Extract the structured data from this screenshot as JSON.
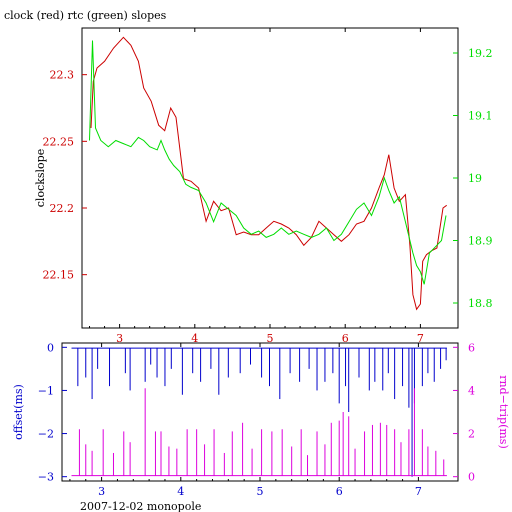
{
  "chart_data": [
    {
      "type": "line",
      "title": "clock (red) rtc (green) slopes",
      "xlabel": "",
      "x_ticks": [
        "3",
        "4",
        "5",
        "6",
        "7"
      ],
      "xlim": [
        2.5,
        7.5
      ],
      "y_left": {
        "label": "clockslope",
        "ticks": [
          "22.3",
          "22.25",
          "22.2",
          "22.15"
        ],
        "ylim": [
          22.11,
          22.335
        ],
        "color": "#cc0000"
      },
      "y_right": {
        "label": "",
        "ticks": [
          "19.2",
          "19.1",
          "19",
          "18.9",
          "18.8"
        ],
        "ylim": [
          18.76,
          19.24
        ],
        "color": "#00dd00"
      },
      "series": [
        {
          "color": "#cc0000",
          "axis": "left",
          "x": [
            2.62,
            2.65,
            2.7,
            2.8,
            2.92,
            3.05,
            3.15,
            3.25,
            3.32,
            3.42,
            3.52,
            3.6,
            3.68,
            3.75,
            3.85,
            3.95,
            4.05,
            4.15,
            4.25,
            4.35,
            4.45,
            4.55,
            4.65,
            4.75,
            4.85,
            4.95,
            5.05,
            5.15,
            5.25,
            5.35,
            5.45,
            5.55,
            5.65,
            5.75,
            5.85,
            5.95,
            6.05,
            6.15,
            6.25,
            6.35,
            6.45,
            6.52,
            6.58,
            6.65,
            6.72,
            6.8,
            6.86,
            6.9,
            6.95,
            7.0,
            7.03,
            7.08,
            7.15,
            7.22,
            7.3,
            7.35
          ],
          "y": [
            22.26,
            22.295,
            22.305,
            22.31,
            22.32,
            22.328,
            22.322,
            22.31,
            22.29,
            22.28,
            22.262,
            22.258,
            22.275,
            22.268,
            22.222,
            22.22,
            22.215,
            22.19,
            22.205,
            22.198,
            22.2,
            22.18,
            22.182,
            22.18,
            22.18,
            22.185,
            22.19,
            22.188,
            22.185,
            22.18,
            22.172,
            22.178,
            22.19,
            22.185,
            22.18,
            22.175,
            22.18,
            22.188,
            22.19,
            22.2,
            22.215,
            22.225,
            22.24,
            22.215,
            22.205,
            22.21,
            22.172,
            22.135,
            22.124,
            22.128,
            22.16,
            22.165,
            22.168,
            22.17,
            22.2,
            22.202
          ]
        },
        {
          "color": "#00dd00",
          "axis": "right",
          "x": [
            2.6,
            2.64,
            2.68,
            2.75,
            2.85,
            2.95,
            3.05,
            3.15,
            3.25,
            3.32,
            3.4,
            3.5,
            3.55,
            3.6,
            3.66,
            3.72,
            3.8,
            3.88,
            3.95,
            4.05,
            4.15,
            4.25,
            4.35,
            4.45,
            4.55,
            4.65,
            4.75,
            4.85,
            4.95,
            5.05,
            5.15,
            5.25,
            5.35,
            5.45,
            5.55,
            5.65,
            5.75,
            5.85,
            5.95,
            6.05,
            6.15,
            6.25,
            6.35,
            6.45,
            6.52,
            6.58,
            6.65,
            6.72,
            6.8,
            6.86,
            6.9,
            6.95,
            7.0,
            7.05,
            7.12,
            7.2,
            7.28,
            7.34
          ],
          "y": [
            19.06,
            19.22,
            19.08,
            19.06,
            19.05,
            19.06,
            19.055,
            19.05,
            19.065,
            19.06,
            19.05,
            19.045,
            19.06,
            19.045,
            19.03,
            19.02,
            19.01,
            18.99,
            18.985,
            18.98,
            18.96,
            18.93,
            18.96,
            18.95,
            18.94,
            18.92,
            18.91,
            18.915,
            18.905,
            18.91,
            18.92,
            18.91,
            18.915,
            18.91,
            18.905,
            18.91,
            18.92,
            18.9,
            18.91,
            18.93,
            18.95,
            18.96,
            18.94,
            18.97,
            19.0,
            18.98,
            18.96,
            18.97,
            18.93,
            18.9,
            18.88,
            18.86,
            18.85,
            18.83,
            18.88,
            18.89,
            18.9,
            18.94
          ]
        }
      ],
      "grid": false
    },
    {
      "type": "line",
      "title": "",
      "xlabel": "2007-12-02 monopole",
      "x_ticks": [
        "3",
        "4",
        "5",
        "6",
        "7"
      ],
      "xlim": [
        2.5,
        7.5
      ],
      "y_left": {
        "label": "offset(ms)",
        "ticks": [
          "0",
          "−1",
          "−2",
          "−3"
        ],
        "ylim": [
          -3.1,
          0.1
        ],
        "color": "#0000cc"
      },
      "y_right": {
        "label": "rnd−trip(ms)",
        "ticks": [
          "6",
          "4",
          "2",
          "0"
        ],
        "ylim": [
          -0.2,
          6.2
        ],
        "color": "#dd00dd"
      },
      "series": [
        {
          "color": "#0000cc",
          "axis": "left",
          "baseline": -0.02,
          "spikes_x": [
            2.7,
            2.8,
            2.88,
            2.95,
            3.1,
            3.3,
            3.36,
            3.55,
            3.62,
            3.7,
            3.8,
            3.88,
            4.02,
            4.15,
            4.25,
            4.38,
            4.48,
            4.6,
            4.75,
            4.88,
            5.02,
            5.12,
            5.25,
            5.38,
            5.5,
            5.62,
            5.72,
            5.82,
            5.92,
            6.0,
            6.08,
            6.12,
            6.25,
            6.38,
            6.45,
            6.55,
            6.62,
            6.7,
            6.8,
            6.88,
            6.92,
            6.95,
            7.05,
            7.12,
            7.2,
            7.28,
            7.35
          ],
          "spikes_y": [
            -0.9,
            -0.7,
            -1.2,
            -0.5,
            -0.9,
            -0.6,
            -1.0,
            -0.8,
            -0.4,
            -0.7,
            -0.9,
            -0.5,
            -1.1,
            -0.6,
            -0.8,
            -0.5,
            -1.1,
            -0.7,
            -0.6,
            -0.4,
            -0.7,
            -0.9,
            -1.2,
            -0.6,
            -0.8,
            -0.5,
            -1.0,
            -0.8,
            -0.6,
            -1.3,
            -0.9,
            -1.5,
            -0.7,
            -1.0,
            -0.8,
            -1.0,
            -0.6,
            -1.2,
            -0.9,
            -1.4,
            -3.0,
            -1.3,
            -0.9,
            -0.6,
            -0.8,
            -0.5,
            -0.3
          ]
        },
        {
          "color": "#dd00dd",
          "axis": "right",
          "baseline": 0.05,
          "spikes_x": [
            2.72,
            2.8,
            2.88,
            3.02,
            3.15,
            3.28,
            3.36,
            3.55,
            3.68,
            3.75,
            3.85,
            3.95,
            4.08,
            4.2,
            4.3,
            4.42,
            4.55,
            4.65,
            4.78,
            4.9,
            5.02,
            5.15,
            5.28,
            5.4,
            5.52,
            5.6,
            5.72,
            5.82,
            5.9,
            6.0,
            6.05,
            6.12,
            6.2,
            6.32,
            6.42,
            6.52,
            6.6,
            6.7,
            6.78,
            6.88,
            6.95,
            7.05,
            7.12,
            7.22,
            7.32
          ],
          "spikes_y": [
            2.2,
            1.5,
            1.2,
            2.2,
            1.1,
            2.1,
            1.6,
            4.1,
            2.1,
            2.1,
            1.4,
            1.3,
            2.2,
            2.2,
            1.5,
            2.2,
            1.1,
            2.1,
            2.5,
            1.3,
            2.2,
            2.1,
            2.2,
            1.4,
            2.2,
            1.0,
            2.1,
            1.5,
            2.5,
            2.6,
            3.0,
            2.8,
            1.3,
            2.1,
            2.4,
            2.5,
            2.4,
            2.2,
            1.6,
            2.2,
            4.1,
            2.2,
            1.4,
            1.2,
            0.8
          ]
        }
      ],
      "grid": false
    }
  ]
}
